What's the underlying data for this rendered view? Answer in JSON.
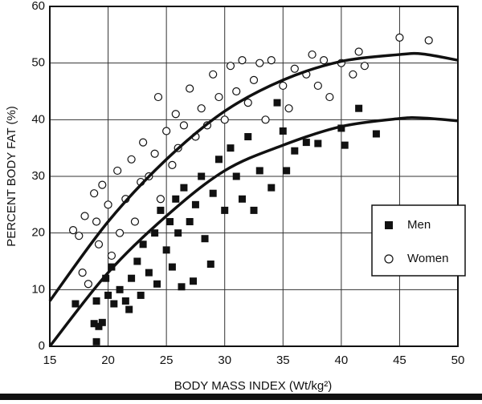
{
  "chart_data": {
    "type": "scatter",
    "xlabel": "BODY MASS INDEX (Wt/kg²)",
    "ylabel": "PERCENT BODY FAT (%)",
    "xlim": [
      15,
      50
    ],
    "xticks": [
      15,
      20,
      25,
      30,
      35,
      40,
      45,
      50
    ],
    "ylim": [
      0,
      60
    ],
    "yticks": [
      0,
      10,
      20,
      30,
      40,
      50,
      60
    ],
    "grid": true,
    "legend": "right",
    "series": [
      {
        "name": "Men",
        "marker": "square",
        "color": "#111111",
        "x": [
          17.2,
          18.8,
          19.0,
          19.2,
          19.5,
          19.0,
          19.8,
          20,
          20.3,
          20.5,
          21,
          21.5,
          21.8,
          22,
          22.5,
          22.8,
          23,
          23.5,
          24,
          24.2,
          24.5,
          25,
          25.3,
          25.5,
          25.8,
          26,
          26.3,
          26.5,
          27,
          27.3,
          27.5,
          28,
          28.3,
          28.8,
          29,
          29.5,
          30,
          30.5,
          31,
          31.5,
          32,
          32.5,
          33,
          34,
          34.5,
          35,
          35.3,
          36,
          37,
          38,
          40,
          40.3,
          41.5,
          43
        ],
        "values": [
          7.5,
          4,
          0.8,
          3.5,
          4.2,
          8,
          12,
          9,
          14,
          7.5,
          10,
          8,
          6.5,
          12,
          15,
          9,
          18,
          13,
          20,
          11,
          24,
          17,
          22,
          14,
          26,
          20,
          10.5,
          28,
          22,
          11.5,
          25,
          30,
          19,
          14.5,
          27,
          33,
          24,
          35,
          30,
          26,
          37,
          24,
          31,
          28,
          43,
          38,
          31,
          34.5,
          36,
          35.8,
          38.5,
          35.5,
          42,
          37.5
        ]
      },
      {
        "name": "Women",
        "marker": "circle",
        "color": "#111111",
        "x": [
          17,
          17.5,
          17.8,
          18,
          18.3,
          18.8,
          19,
          19.2,
          19.5,
          20,
          20.3,
          20.8,
          21,
          21.5,
          22,
          22.3,
          22.8,
          23,
          23.5,
          24,
          24.3,
          24.5,
          25,
          25.5,
          25.8,
          26,
          26.5,
          27,
          27.5,
          28,
          28.5,
          29,
          29.5,
          30,
          30.5,
          31,
          31.5,
          32,
          32.5,
          33,
          33.5,
          34,
          35,
          35.5,
          36,
          37,
          37.5,
          38,
          38.5,
          39,
          40,
          41,
          41.5,
          42,
          45,
          47.5
        ],
        "values": [
          20.5,
          19.5,
          13,
          23,
          11,
          27,
          22,
          18,
          28.5,
          25,
          16,
          31,
          20,
          26,
          33,
          22,
          29,
          36,
          30,
          34,
          44,
          26,
          38,
          32,
          41,
          35,
          39,
          45.5,
          37,
          42,
          39,
          48,
          44,
          40,
          49.5,
          45,
          50.5,
          43,
          47,
          50,
          40,
          50.5,
          46,
          42,
          49,
          48,
          51.5,
          46,
          50.5,
          44,
          50,
          48,
          52,
          49.5,
          54.5,
          54
        ]
      }
    ],
    "fit_lines": [
      {
        "x": [
          15,
          20,
          25,
          30,
          35,
          40,
          45,
          47,
          50
        ],
        "values": [
          8,
          22,
          33,
          41.5,
          47,
          50.3,
          51.5,
          51.6,
          50.5
        ]
      },
      {
        "x": [
          15,
          20,
          25,
          30,
          35,
          40,
          45,
          47,
          50
        ],
        "values": [
          0,
          13,
          23,
          31,
          35.5,
          38.8,
          40.2,
          40.3,
          39.8
        ]
      }
    ]
  }
}
